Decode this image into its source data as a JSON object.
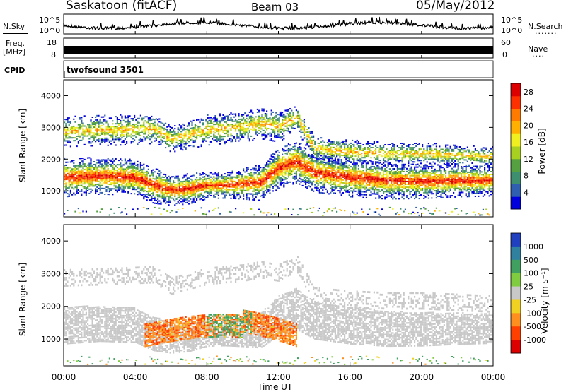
{
  "header": {
    "station": "Saskatoon (fitACF)",
    "beam": "Beam 03",
    "date": "05/May/2012"
  },
  "status_panels": {
    "nsky": {
      "label": "N.Sky",
      "ticks_left": [
        "10^5",
        "10^0"
      ]
    },
    "nsearch": {
      "label": "N.Search",
      "ticks_right": [
        "10^5",
        "10^0"
      ]
    },
    "freq": {
      "label_line1": "Freq.",
      "label_line2": "[MHz]",
      "ticks_left": [
        "18",
        "8"
      ]
    },
    "nave": {
      "label": "Nave",
      "ticks_right": [
        "60",
        "0"
      ]
    },
    "cpid": {
      "label": "CPID",
      "program": "twofsound 3501"
    }
  },
  "x_axis": {
    "label": "Time UT",
    "ticks": [
      "00:00",
      "04:00",
      "08:00",
      "12:00",
      "16:00",
      "20:00",
      "00:00"
    ]
  },
  "power_panel": {
    "ylabel": "Slant Range [km]",
    "yticks": [
      "4000",
      "3000",
      "2000",
      "1000"
    ],
    "colorbar_label": "Power [dB]",
    "colorbar_ticks": [
      "28",
      "24",
      "20",
      "16",
      "12",
      "8",
      "4"
    ],
    "colors": [
      "#0000dd",
      "#2f5fb0",
      "#3d8f70",
      "#55a040",
      "#a8d020",
      "#f0f020",
      "#ffb000",
      "#ff7a00",
      "#ff3000",
      "#dd0000"
    ]
  },
  "velocity_panel": {
    "ylabel": "Slant Range [km]",
    "yticks": [
      "4000",
      "3000",
      "2000",
      "1000"
    ],
    "colorbar_label": "Velocity [m s⁻¹]",
    "colorbar_ticks": [
      "1000",
      "500",
      "100",
      "25",
      "-25",
      "-100",
      "-500",
      "-1000"
    ],
    "colors": [
      "#2040c0",
      "#3080a0",
      "#3fa060",
      "#80cc40",
      "#c8c8c8",
      "#f0d020",
      "#ff9020",
      "#ff4000",
      "#dd0000"
    ],
    "ground_scatter_color": "#c8c8c8"
  },
  "chart_data": [
    {
      "type": "heatmap",
      "title": "Power",
      "xlabel": "Time UT",
      "ylabel": "Slant Range [km]",
      "xlim": [
        "00:00",
        "24:00"
      ],
      "ylim": [
        180,
        4500
      ],
      "colorbar": {
        "label": "Power [dB]",
        "range": [
          0,
          30
        ]
      },
      "bands": [
        {
          "name": "main band",
          "times_h": [
            0,
            2,
            4,
            5,
            6,
            7,
            8,
            9,
            10,
            11,
            12,
            13,
            14,
            16,
            18,
            20,
            22,
            24
          ],
          "center_km": [
            1400,
            1450,
            1400,
            1150,
            1000,
            1050,
            1150,
            1150,
            1200,
            1250,
            1700,
            1900,
            1550,
            1400,
            1300,
            1280,
            1300,
            1300
          ],
          "halfwidth_km": [
            380,
            360,
            350,
            350,
            300,
            300,
            260,
            250,
            300,
            360,
            400,
            420,
            380,
            380,
            360,
            340,
            320,
            300
          ],
          "peak_db": 28
        },
        {
          "name": "upper band",
          "times_h": [
            0,
            3,
            5,
            6,
            8,
            10,
            11,
            12,
            13,
            14,
            16,
            18,
            20,
            22,
            24
          ],
          "center_km": [
            2850,
            2900,
            2950,
            2600,
            2900,
            3000,
            3100,
            3000,
            3300,
            2300,
            2200,
            2150,
            2150,
            2100,
            2050
          ],
          "halfwidth_km": [
            300,
            300,
            300,
            250,
            300,
            300,
            300,
            300,
            250,
            250,
            250,
            220,
            220,
            200,
            200
          ],
          "peak_db": 20
        }
      ]
    },
    {
      "type": "heatmap",
      "title": "Velocity",
      "xlabel": "Time UT",
      "ylabel": "Slant Range [km]",
      "xlim": [
        "00:00",
        "24:00"
      ],
      "ylim": [
        180,
        4500
      ],
      "colorbar": {
        "label": "Velocity [m s-1]",
        "range": [
          -1000,
          1000
        ]
      },
      "features": [
        {
          "name": "ground scatter band",
          "color": "gray",
          "times_h": [
            0,
            24
          ],
          "km_range": [
            900,
            2100
          ]
        },
        {
          "name": "ionospheric scatter",
          "times_h": [
            4.5,
            13
          ],
          "km_range": [
            700,
            2000
          ],
          "velocity_ms": -400
        },
        {
          "name": "ionospheric scatter",
          "times_h": [
            8,
            10.5
          ],
          "km_range": [
            1100,
            1500
          ],
          "velocity_ms": 200
        }
      ]
    }
  ]
}
